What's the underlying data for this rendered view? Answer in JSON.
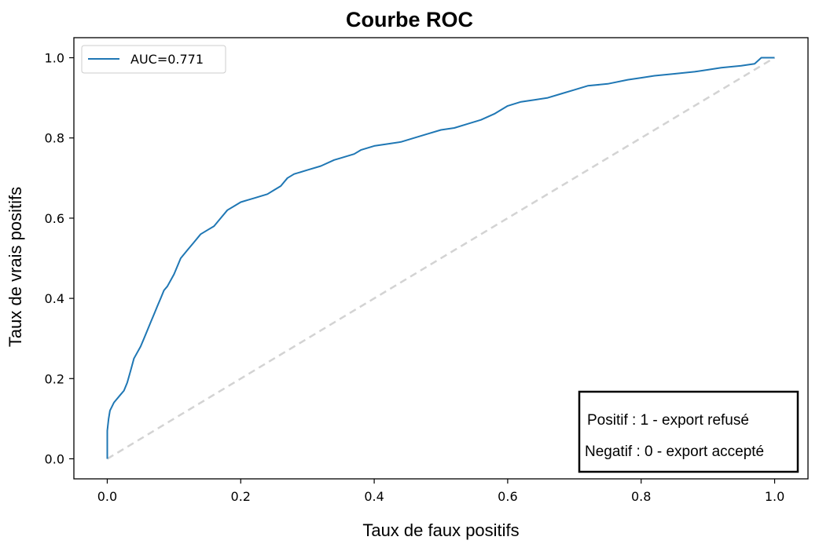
{
  "chart_data": {
    "type": "line",
    "title": "Courbe ROC",
    "xlabel": "Taux de faux positifs",
    "ylabel": "Taux de vrais positifs",
    "xlim": [
      -0.05,
      1.05
    ],
    "ylim": [
      -0.05,
      1.05
    ],
    "xticks": [
      0.0,
      0.2,
      0.4,
      0.6,
      0.8,
      1.0
    ],
    "yticks": [
      0.0,
      0.2,
      0.4,
      0.6,
      0.8,
      1.0
    ],
    "xtick_labels": [
      "0.0",
      "0.2",
      "0.4",
      "0.6",
      "0.8",
      "1.0"
    ],
    "ytick_labels": [
      "0.0",
      "0.2",
      "0.4",
      "0.6",
      "0.8",
      "1.0"
    ],
    "grid": false,
    "legend_position": "upper-left",
    "series": [
      {
        "name": "AUC=0.771",
        "color": "#1f77b4",
        "x": [
          0.0,
          0.0,
          0.002,
          0.004,
          0.01,
          0.02,
          0.025,
          0.03,
          0.035,
          0.04,
          0.05,
          0.055,
          0.06,
          0.065,
          0.07,
          0.075,
          0.08,
          0.085,
          0.09,
          0.1,
          0.11,
          0.12,
          0.13,
          0.14,
          0.15,
          0.16,
          0.17,
          0.18,
          0.19,
          0.2,
          0.21,
          0.22,
          0.24,
          0.25,
          0.26,
          0.27,
          0.28,
          0.3,
          0.32,
          0.34,
          0.35,
          0.37,
          0.38,
          0.4,
          0.42,
          0.44,
          0.46,
          0.48,
          0.5,
          0.52,
          0.54,
          0.56,
          0.58,
          0.6,
          0.62,
          0.64,
          0.66,
          0.68,
          0.7,
          0.72,
          0.75,
          0.78,
          0.8,
          0.82,
          0.85,
          0.88,
          0.9,
          0.92,
          0.95,
          0.97,
          0.98,
          1.0
        ],
        "y": [
          0.0,
          0.07,
          0.1,
          0.12,
          0.14,
          0.16,
          0.17,
          0.19,
          0.22,
          0.25,
          0.28,
          0.3,
          0.32,
          0.34,
          0.36,
          0.38,
          0.4,
          0.42,
          0.43,
          0.46,
          0.5,
          0.52,
          0.54,
          0.56,
          0.57,
          0.58,
          0.6,
          0.62,
          0.63,
          0.64,
          0.645,
          0.65,
          0.66,
          0.67,
          0.68,
          0.7,
          0.71,
          0.72,
          0.73,
          0.745,
          0.75,
          0.76,
          0.77,
          0.78,
          0.785,
          0.79,
          0.8,
          0.81,
          0.82,
          0.825,
          0.835,
          0.845,
          0.86,
          0.88,
          0.89,
          0.895,
          0.9,
          0.91,
          0.92,
          0.93,
          0.935,
          0.945,
          0.95,
          0.955,
          0.96,
          0.965,
          0.97,
          0.975,
          0.98,
          0.985,
          1.0,
          1.0
        ]
      },
      {
        "name": "",
        "color": "#d3d3d3",
        "dash": "dashed",
        "x": [
          0.0,
          1.0
        ],
        "y": [
          0.0,
          1.0
        ]
      }
    ],
    "annotation": {
      "lines": [
        "Positif : 1 - export refusé",
        "Negatif : 0 - export accepté"
      ],
      "position": "lower-right"
    }
  }
}
